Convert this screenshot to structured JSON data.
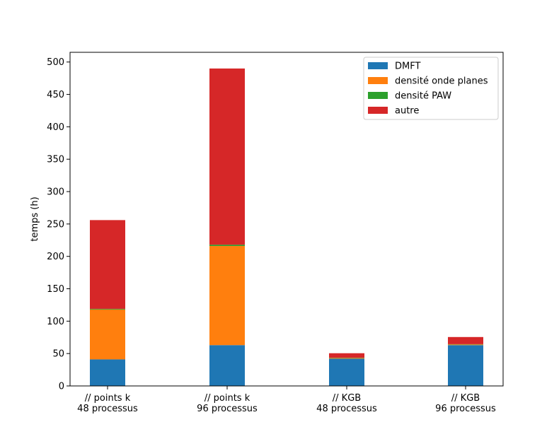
{
  "chart_data": {
    "type": "bar",
    "stacked": true,
    "title": "",
    "xlabel": "",
    "ylabel": "temps (h)",
    "ylim": [
      0,
      515
    ],
    "yticks": [
      0,
      50,
      100,
      150,
      200,
      250,
      300,
      350,
      400,
      450,
      500
    ],
    "categories": [
      [
        "// points k",
        "48 processus"
      ],
      [
        "// points k",
        "96 processus"
      ],
      [
        "// KGB",
        "48 processus"
      ],
      [
        "// KGB",
        "96 processus"
      ]
    ],
    "series": [
      {
        "name": "DMFT",
        "color": "#1f77b4",
        "values": [
          41,
          63,
          42,
          63
        ]
      },
      {
        "name": "densité onde planes",
        "color": "#ff7f0e",
        "values": [
          77,
          153,
          1,
          1
        ]
      },
      {
        "name": "densité PAW",
        "color": "#2ca02c",
        "values": [
          1,
          2,
          0.5,
          0.5
        ]
      },
      {
        "name": "autre",
        "color": "#d62728",
        "values": [
          137,
          272,
          7,
          11
        ]
      }
    ],
    "grid": false,
    "legend_position": "upper right"
  }
}
